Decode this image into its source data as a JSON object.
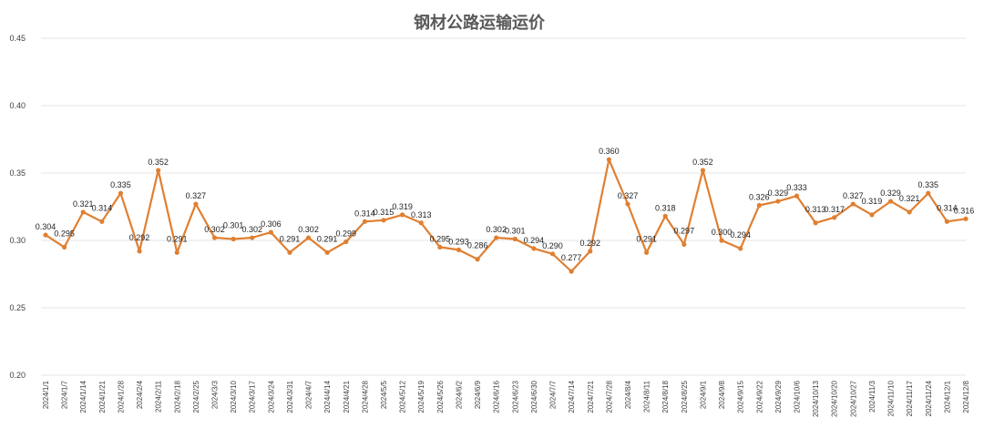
{
  "chart_data": {
    "type": "line",
    "title": "钢材公路运输运价",
    "xlabel": "",
    "ylabel": "",
    "ylim": [
      0.2,
      0.45
    ],
    "yticks": [
      "0.20",
      "0.25",
      "0.30",
      "0.35",
      "0.40",
      "0.45"
    ],
    "grid": true,
    "legend": "none",
    "line_color": "#E07F31",
    "categories": [
      "2024/1/1",
      "2024/1/7",
      "2024/1/14",
      "2024/1/21",
      "2024/1/28",
      "2024/2/4",
      "2024/2/11",
      "2024/2/18",
      "2024/2/25",
      "2024/3/3",
      "2024/3/10",
      "2024/3/17",
      "2024/3/24",
      "2024/3/31",
      "2024/4/7",
      "2024/4/14",
      "2024/4/21",
      "2024/4/28",
      "2024/5/5",
      "2024/5/12",
      "2024/5/19",
      "2024/5/26",
      "2024/6/2",
      "2024/6/9",
      "2024/6/16",
      "2024/6/23",
      "2024/6/30",
      "2024/7/7",
      "2024/7/14",
      "2024/7/21",
      "2024/7/28",
      "2024/8/4",
      "2024/8/11",
      "2024/8/18",
      "2024/8/25",
      "2024/9/1",
      "2024/9/8",
      "2024/9/15",
      "2024/9/22",
      "2024/9/29",
      "2024/10/6",
      "2024/10/13",
      "2024/10/20",
      "2024/10/27",
      "2024/11/3",
      "2024/11/10",
      "2024/11/17",
      "2024/11/24",
      "2024/12/1",
      "2024/12/8"
    ],
    "values": [
      0.304,
      0.295,
      0.321,
      0.314,
      0.335,
      0.292,
      0.352,
      0.291,
      0.327,
      0.302,
      0.301,
      0.302,
      0.306,
      0.291,
      0.302,
      0.291,
      0.299,
      0.314,
      0.315,
      0.319,
      0.313,
      0.295,
      0.293,
      0.286,
      0.302,
      0.301,
      0.294,
      0.29,
      0.277,
      0.292,
      0.36,
      0.327,
      0.291,
      0.318,
      0.297,
      0.352,
      0.3,
      0.294,
      0.326,
      0.329,
      0.333,
      0.313,
      0.317,
      0.327,
      0.319,
      0.329,
      0.321,
      0.335,
      0.314,
      0.316
    ],
    "data_labels": [
      "0.304",
      "0.295",
      "0.321",
      "0.314",
      "0.335",
      "0.292",
      "0.352",
      "0.291",
      "0.327",
      "0.302",
      "0.301",
      "0.302",
      "0.306",
      "0.291",
      "0.302",
      "0.291",
      "0.299",
      "0.314",
      "0.315",
      "0.319",
      "0.313",
      "0.295",
      "0.293",
      "0.286",
      "0.302",
      "0.301",
      "0.294",
      "0.290",
      "0.277",
      "0.292",
      "0.360",
      "0.327",
      "0.291",
      "0.318",
      "0.297",
      "0.352",
      "0.300",
      "0.294",
      "0.326",
      "0.329",
      "0.333",
      "0.313",
      "0.317",
      "0.327",
      "0.319",
      "0.329",
      "0.321",
      "0.335",
      "0.314",
      "0.316"
    ]
  }
}
